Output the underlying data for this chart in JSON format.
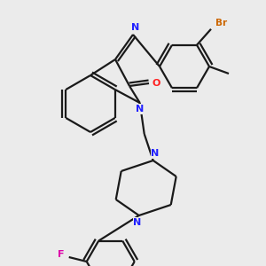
{
  "bg_color": "#ebebeb",
  "bond_color": "#1a1a1a",
  "atom_colors": {
    "N": "#2020ff",
    "O": "#ff2020",
    "Br": "#cc6600",
    "F": "#dd00aa"
  },
  "lw": 1.6,
  "fs": 7.5
}
